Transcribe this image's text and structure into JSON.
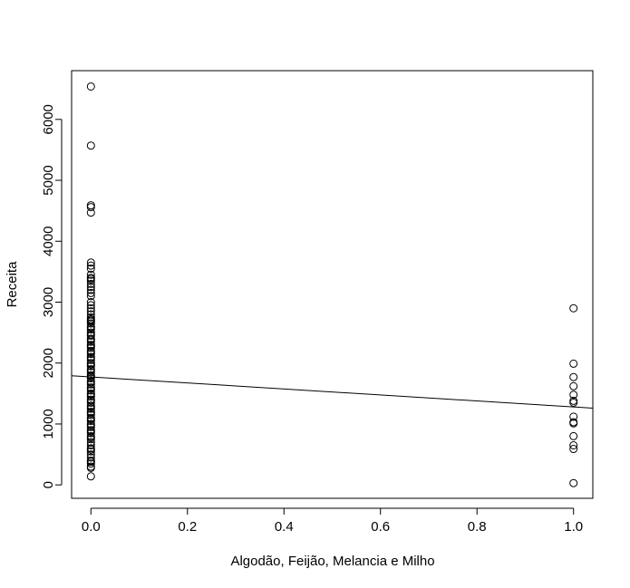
{
  "chart_data": {
    "type": "scatter",
    "title": "",
    "xlabel": "Algodão, Feijão, Melancia e Milho",
    "ylabel": "Receita",
    "xlim": [
      -0.04,
      1.04
    ],
    "ylim": [
      -220,
      6800
    ],
    "x_ticks": [
      0.0,
      0.2,
      0.4,
      0.6,
      0.8,
      1.0
    ],
    "x_tick_labels": [
      "0.0",
      "0.2",
      "0.4",
      "0.6",
      "0.8",
      "1.0"
    ],
    "y_ticks": [
      0,
      1000,
      2000,
      3000,
      4000,
      5000,
      6000
    ],
    "y_tick_labels": [
      "0",
      "1000",
      "2000",
      "3000",
      "4000",
      "5000",
      "6000"
    ],
    "grid": false,
    "series": [
      {
        "x": 0,
        "y": [
          6540,
          5570,
          4590,
          4560,
          4470,
          3650,
          3600,
          3550,
          3450,
          3400,
          3380,
          3350,
          3300,
          3250,
          3200,
          3150,
          3100,
          3000,
          2950,
          2900,
          2850,
          2800,
          2750,
          2720,
          2700,
          2680,
          2650,
          2600,
          2580,
          2550,
          2500,
          2470,
          2450,
          2400,
          2380,
          2350,
          2300,
          2280,
          2250,
          2200,
          2180,
          2150,
          2100,
          2080,
          2050,
          2000,
          1980,
          1950,
          1900,
          1880,
          1850,
          1800,
          1780,
          1750,
          1700,
          1680,
          1650,
          1600,
          1580,
          1550,
          1500,
          1480,
          1450,
          1400,
          1380,
          1350,
          1300,
          1280,
          1250,
          1200,
          1180,
          1150,
          1100,
          1080,
          1050,
          1000,
          980,
          950,
          900,
          880,
          850,
          800,
          780,
          750,
          700,
          650,
          600,
          580,
          550,
          500,
          450,
          400,
          380,
          350,
          300,
          280,
          140
        ]
      },
      {
        "x": 1,
        "y": [
          2900,
          1990,
          1770,
          1620,
          1480,
          1380,
          1350,
          1120,
          1030,
          1010,
          800,
          650,
          590,
          30
        ]
      }
    ],
    "regression_line": {
      "x": [
        -0.04,
        1.04
      ],
      "y": [
        1792,
        1260
      ]
    }
  }
}
